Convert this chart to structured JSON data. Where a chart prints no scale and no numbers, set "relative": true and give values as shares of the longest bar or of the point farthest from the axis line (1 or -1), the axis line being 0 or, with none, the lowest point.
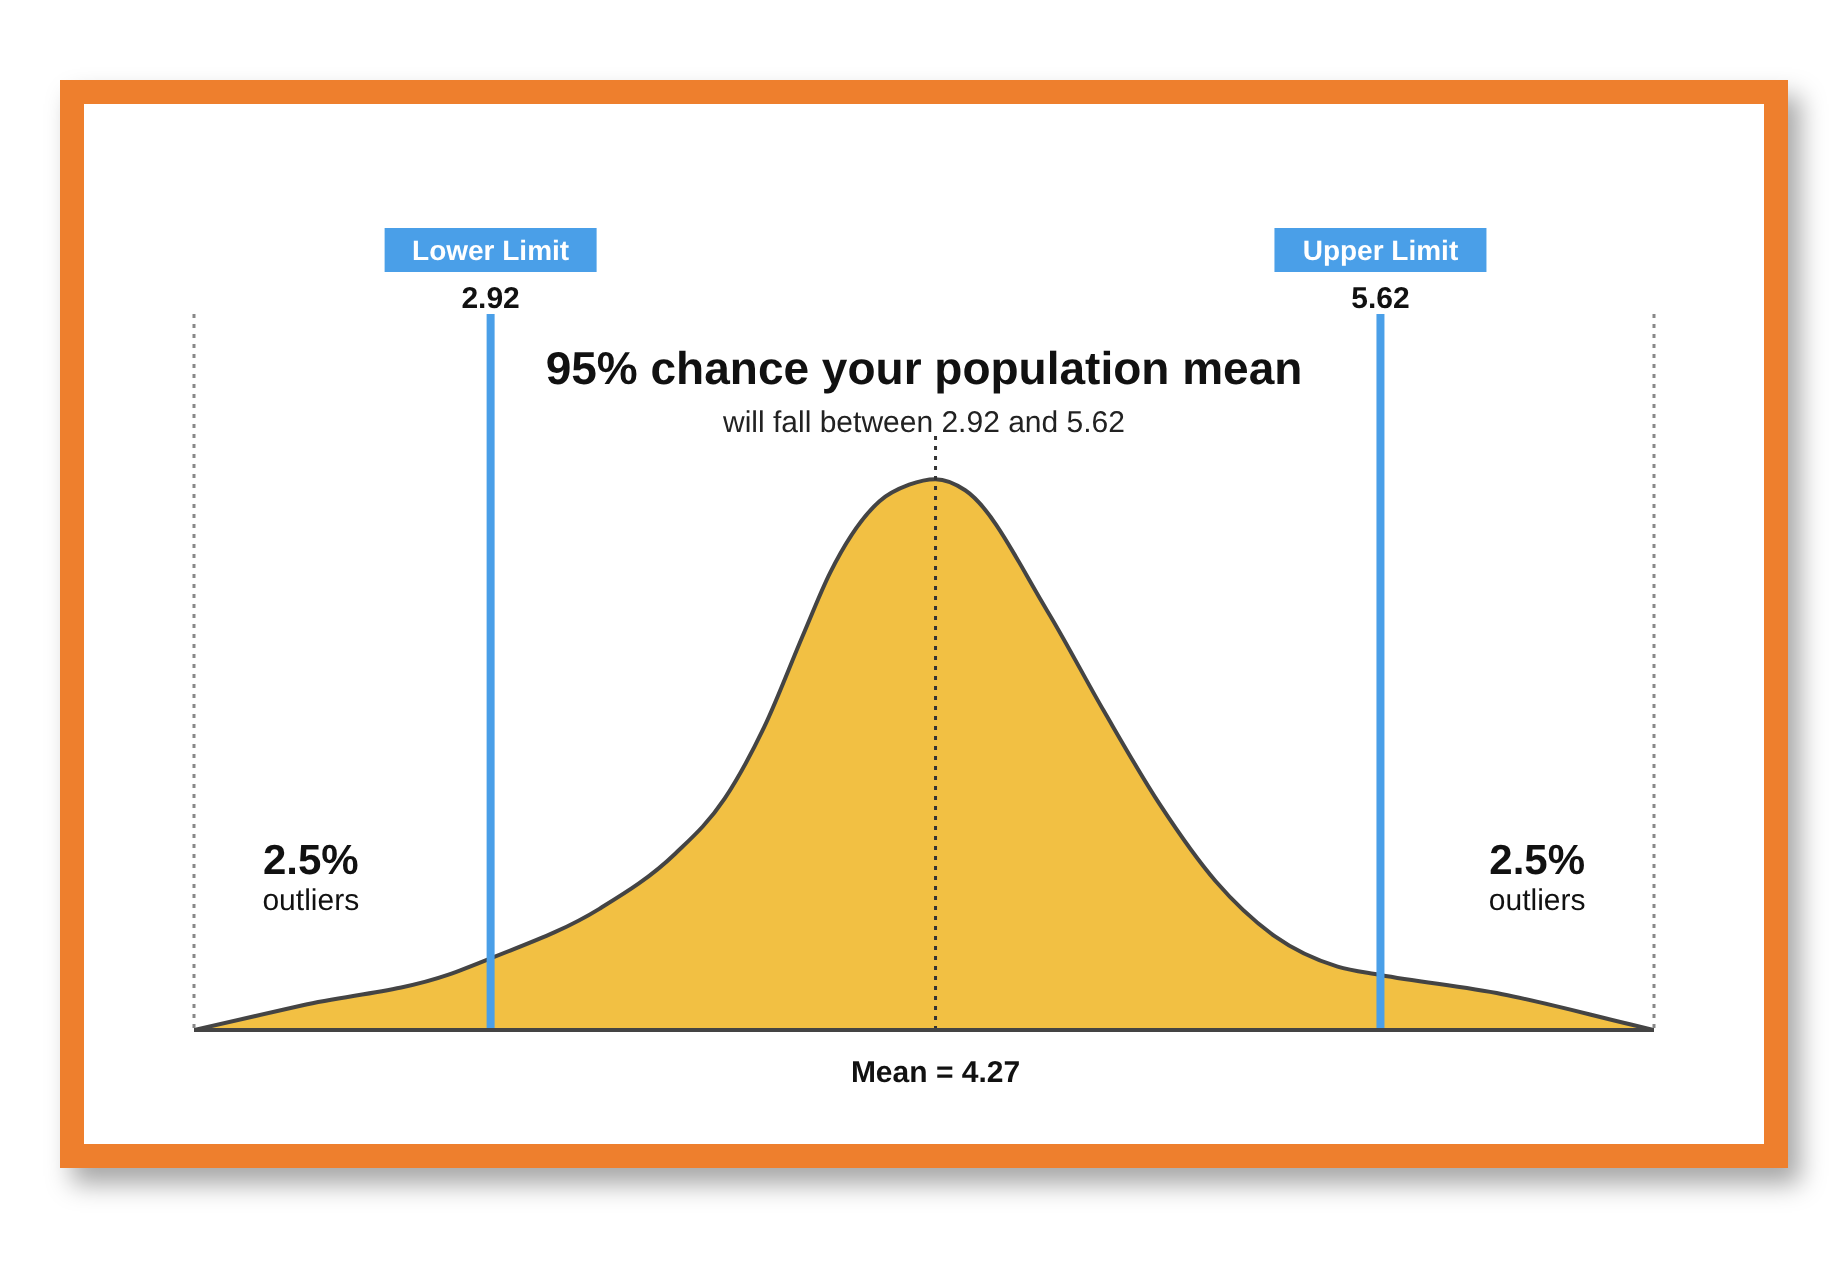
{
  "chart_data": {
    "type": "area",
    "title": "95% chance your population mean",
    "subtitle": "will fall between 2.92 and 5.62",
    "relative": true,
    "color": "#f2c043",
    "xlim": [
      2.02,
      6.45
    ],
    "xticks": [
      2.92,
      5.62
    ],
    "x": [
      2.02,
      2.35,
      2.79,
      2.92,
      3.25,
      3.48,
      3.63,
      3.75,
      3.87,
      3.95,
      4.1,
      4.19,
      4.27,
      4.36,
      4.61,
      4.78,
      4.95,
      5.12,
      5.3,
      5.49,
      5.62,
      5.99,
      6.38,
      6.45
    ],
    "values": [
      0,
      0.045,
      0.1,
      0.13,
      0.22,
      0.32,
      0.42,
      0.55,
      0.72,
      0.83,
      0.96,
      0.99,
      1,
      0.98,
      0.76,
      0.58,
      0.41,
      0.27,
      0.17,
      0.115,
      0.1,
      0.065,
      0.01,
      0
    ],
    "ref_lines": [
      {
        "axis": "x",
        "value": 2.02,
        "color": "#888888",
        "line_style": "dotted"
      },
      {
        "axis": "x",
        "value": 2.92,
        "label": "Lower Limit",
        "color": "#4a9fe8",
        "line_style": "solid"
      },
      {
        "axis": "x",
        "value": 4.27,
        "label": "Mean = 4.27",
        "color": "#333333",
        "line_style": "dotted"
      },
      {
        "axis": "x",
        "value": 5.62,
        "label": "Upper Limit",
        "color": "#4a9fe8",
        "line_style": "solid"
      },
      {
        "axis": "x",
        "value": 6.45,
        "color": "#888888",
        "line_style": "dotted"
      }
    ],
    "annotations": [
      "2.5%\noutliers",
      "2.5%\noutliers"
    ]
  }
}
